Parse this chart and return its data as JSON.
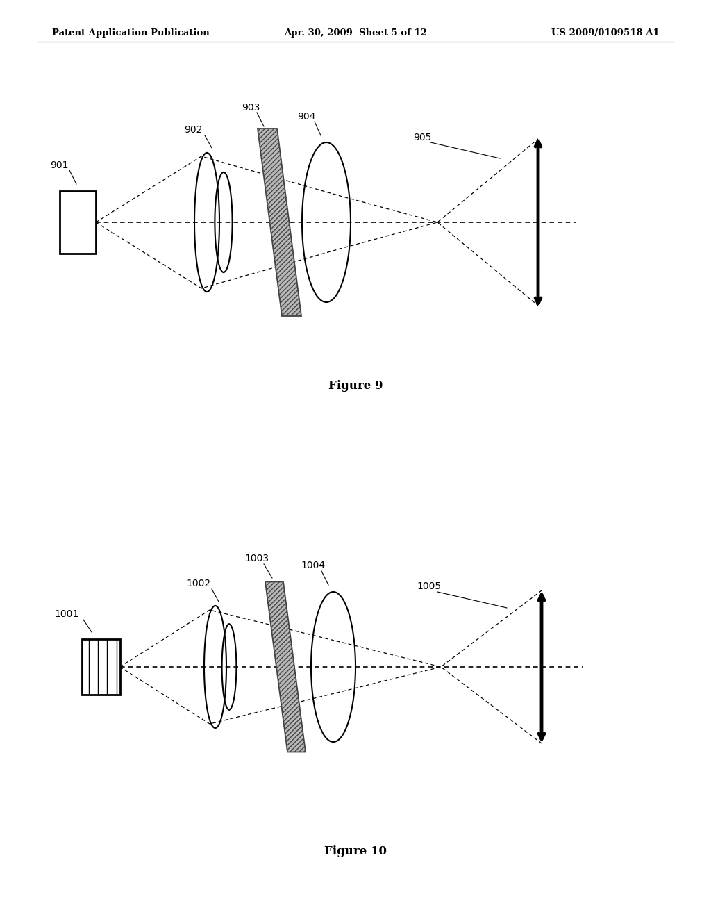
{
  "header_left": "Patent Application Publication",
  "header_mid": "Apr. 30, 2009  Sheet 5 of 12",
  "header_right": "US 2009/0109518 A1",
  "fig9_caption": "Figure 9",
  "fig10_caption": "Figure 10",
  "background_color": "#ffffff",
  "line_color": "#000000"
}
